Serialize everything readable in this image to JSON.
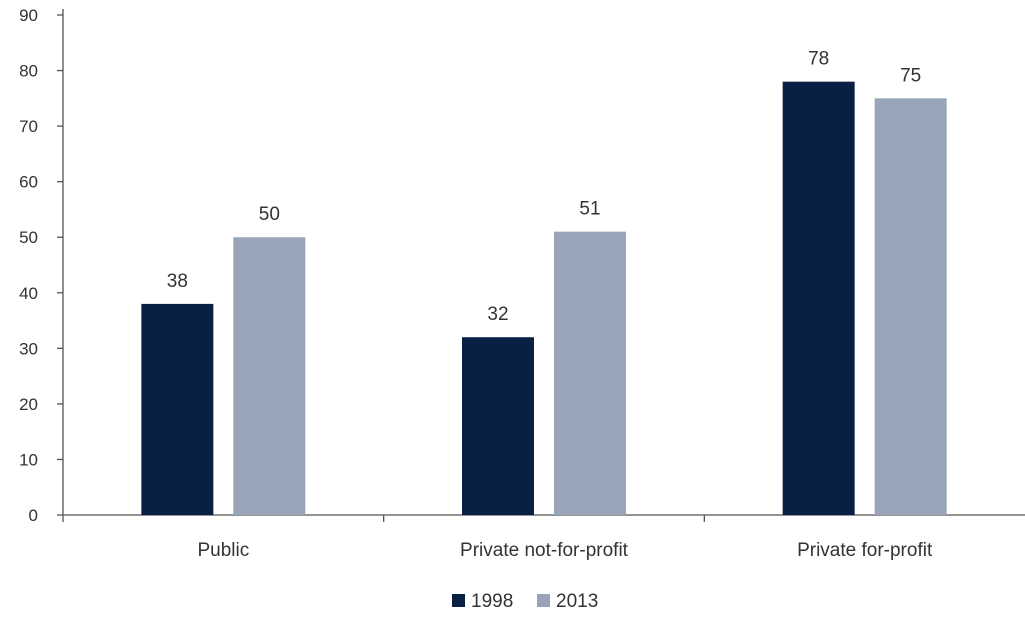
{
  "chart_data": {
    "type": "bar",
    "title": "",
    "xlabel": "",
    "ylabel": "",
    "categories": [
      "Public",
      "Private not-for-profit",
      "Private for-profit"
    ],
    "series": [
      {
        "name": "1998",
        "values": [
          38,
          32,
          78
        ],
        "labels": [
          "38",
          "32",
          "78"
        ],
        "color": "#0a1f44"
      },
      {
        "name": "2013",
        "values": [
          50,
          51,
          75
        ],
        "labels": [
          "50",
          "51",
          "75"
        ],
        "color": "#98a4b7"
      }
    ],
    "ylim": [
      0,
      90
    ],
    "yticks": [
      0,
      10,
      20,
      30,
      40,
      50,
      60,
      70,
      80,
      90
    ],
    "grid": false,
    "legend_position": "bottom-center"
  }
}
